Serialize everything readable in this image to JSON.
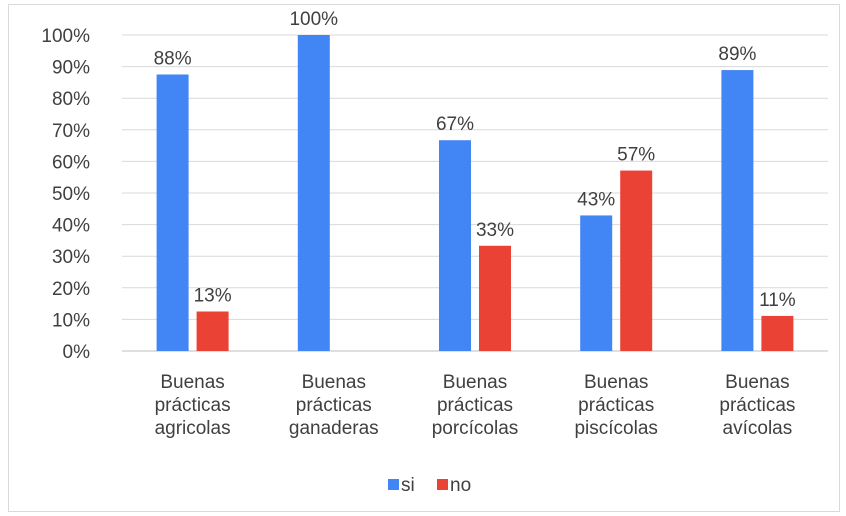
{
  "chart_data": {
    "type": "bar",
    "categories": [
      [
        "Buenas",
        "prácticas",
        "agricolas"
      ],
      [
        "Buenas",
        "prácticas",
        "ganaderas"
      ],
      [
        "Buenas",
        "prácticas",
        "porcícolas"
      ],
      [
        "Buenas",
        "prácticas",
        "piscícolas"
      ],
      [
        "Buenas",
        "prácticas",
        "avícolas"
      ]
    ],
    "series": [
      {
        "name": "si",
        "color": "#4285f4",
        "values": [
          87.5,
          100,
          66.7,
          42.9,
          88.9
        ],
        "labels": [
          "88%",
          "100%",
          "67%",
          "43%",
          "89%"
        ]
      },
      {
        "name": "no",
        "color": "#ea4335",
        "values": [
          12.5,
          null,
          33.3,
          57.1,
          11.1
        ],
        "labels": [
          "13%",
          "",
          "33%",
          "57%",
          "11%"
        ]
      }
    ],
    "yticks": [
      "0%",
      "10%",
      "20%",
      "30%",
      "40%",
      "50%",
      "60%",
      "70%",
      "80%",
      "90%",
      "100%"
    ],
    "ylim": [
      0,
      100
    ],
    "grid": true,
    "legend_position": "bottom"
  }
}
